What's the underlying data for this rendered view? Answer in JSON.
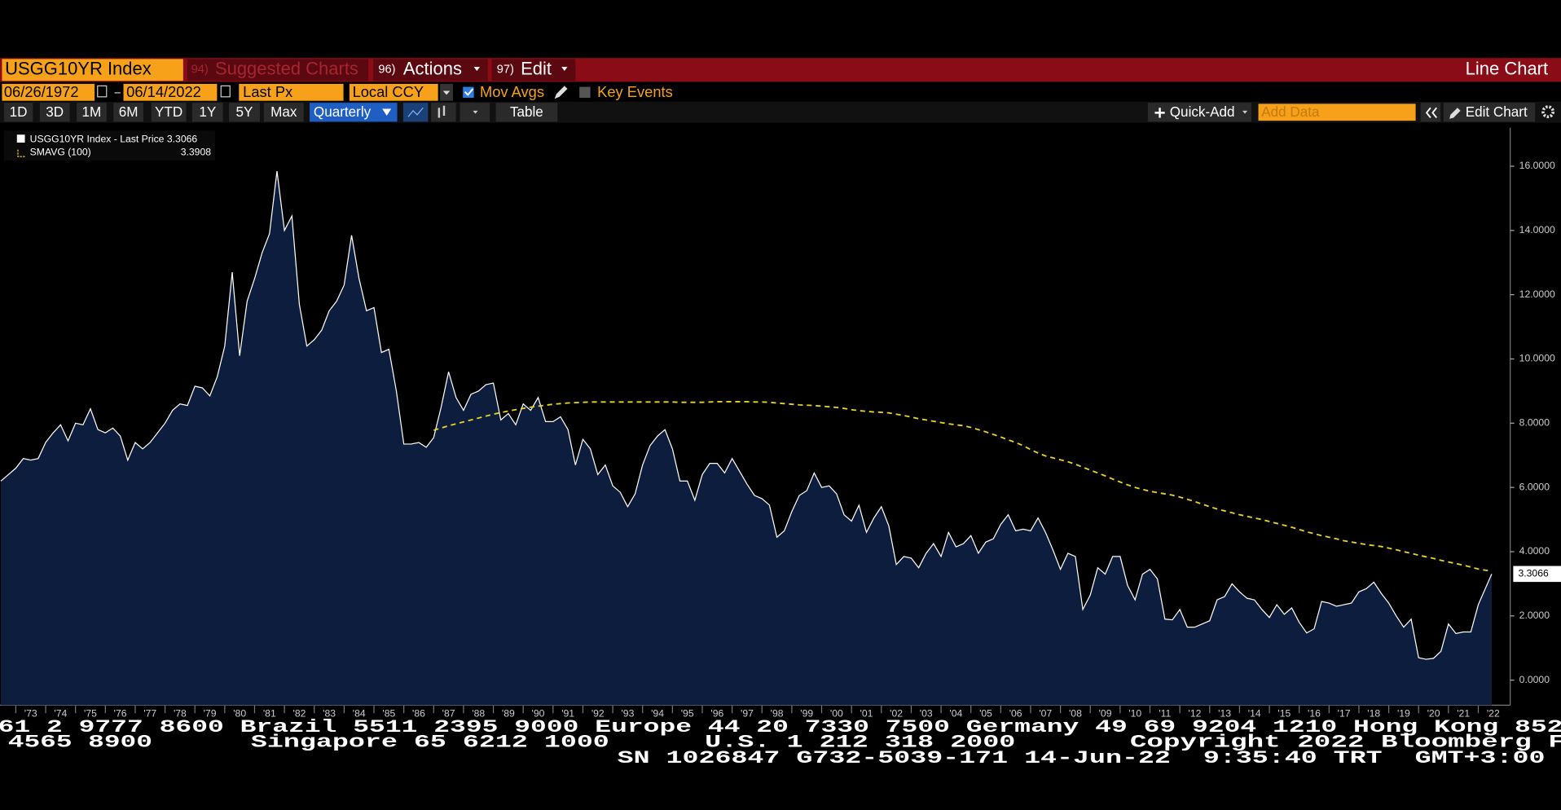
{
  "toolbar": {
    "ticker": "USGG10YR Index",
    "menu": [
      {
        "num": "94)",
        "label": "Suggested Charts"
      },
      {
        "num": "96)",
        "label": "Actions"
      },
      {
        "num": "97)",
        "label": "Edit"
      }
    ],
    "chart_kind": "Line Chart",
    "start_date": "06/26/1972",
    "end_date": "06/14/2022",
    "field": "Last Px",
    "currency": "Local CCY",
    "mov_avgs": "Mov Avgs",
    "key_events": "Key Events",
    "periods": [
      "1D",
      "3D",
      "1M",
      "6M",
      "YTD",
      "1Y",
      "5Y",
      "Max"
    ],
    "frequency": "Quarterly",
    "table": "Table",
    "quick_add": "Quick-Add",
    "add_data": "Add Data",
    "edit_chart": "Edit Chart"
  },
  "chart_data": {
    "type": "line",
    "x": [
      1972.5,
      1972.75,
      1973,
      1973.25,
      1973.5,
      1973.75,
      1974,
      1974.25,
      1974.5,
      1974.75,
      1975,
      1975.25,
      1975.5,
      1975.75,
      1976,
      1976.25,
      1976.5,
      1976.75,
      1977,
      1977.25,
      1977.5,
      1977.75,
      1978,
      1978.25,
      1978.5,
      1978.75,
      1979,
      1979.25,
      1979.5,
      1979.75,
      1980,
      1980.25,
      1980.5,
      1980.75,
      1981,
      1981.25,
      1981.5,
      1981.75,
      1982,
      1982.25,
      1982.5,
      1982.75,
      1983,
      1983.25,
      1983.5,
      1983.75,
      1984,
      1984.25,
      1984.5,
      1984.75,
      1985,
      1985.25,
      1985.5,
      1985.75,
      1986,
      1986.25,
      1986.5,
      1986.75,
      1987,
      1987.25,
      1987.5,
      1987.75,
      1988,
      1988.25,
      1988.5,
      1988.75,
      1989,
      1989.25,
      1989.5,
      1989.75,
      1990,
      1990.25,
      1990.5,
      1990.75,
      1991,
      1991.25,
      1991.5,
      1991.75,
      1992,
      1992.25,
      1992.5,
      1992.75,
      1993,
      1993.25,
      1993.5,
      1993.75,
      1994,
      1994.25,
      1994.5,
      1994.75,
      1995,
      1995.25,
      1995.5,
      1995.75,
      1996,
      1996.25,
      1996.5,
      1996.75,
      1997,
      1997.25,
      1997.5,
      1997.75,
      1998,
      1998.25,
      1998.5,
      1998.75,
      1999,
      1999.25,
      1999.5,
      1999.75,
      2000,
      2000.25,
      2000.5,
      2000.75,
      2001,
      2001.25,
      2001.5,
      2001.75,
      2002,
      2002.25,
      2002.5,
      2002.75,
      2003,
      2003.25,
      2003.5,
      2003.75,
      2004,
      2004.25,
      2004.5,
      2004.75,
      2005,
      2005.25,
      2005.5,
      2005.75,
      2006,
      2006.25,
      2006.5,
      2006.75,
      2007,
      2007.25,
      2007.5,
      2007.75,
      2008,
      2008.25,
      2008.5,
      2008.75,
      2009,
      2009.25,
      2009.5,
      2009.75,
      2010,
      2010.25,
      2010.5,
      2010.75,
      2011,
      2011.25,
      2011.5,
      2011.75,
      2012,
      2012.25,
      2012.5,
      2012.75,
      2013,
      2013.25,
      2013.5,
      2013.75,
      2014,
      2014.25,
      2014.5,
      2014.75,
      2015,
      2015.25,
      2015.5,
      2015.75,
      2016,
      2016.25,
      2016.5,
      2016.75,
      2017,
      2017.25,
      2017.5,
      2017.75,
      2018,
      2018.25,
      2018.5,
      2018.75,
      2019,
      2019.25,
      2019.5,
      2019.75,
      2020,
      2020.25,
      2020.5,
      2020.75,
      2021,
      2021.25,
      2021.5,
      2021.75,
      2022,
      2022.45
    ],
    "series": [
      {
        "name": "USGG10YR Index - Last Price 3.3066",
        "color": "#ffffff",
        "fill": "#0c1d3d",
        "values": [
          6.2,
          6.4,
          6.6,
          6.9,
          6.85,
          6.9,
          7.4,
          7.7,
          7.95,
          7.45,
          8.0,
          7.95,
          8.45,
          7.8,
          7.7,
          7.85,
          7.6,
          6.85,
          7.4,
          7.2,
          7.4,
          7.7,
          8.0,
          8.4,
          8.6,
          8.55,
          9.15,
          9.1,
          8.85,
          9.45,
          10.4,
          12.7,
          10.1,
          11.8,
          12.5,
          13.3,
          13.9,
          15.85,
          14.0,
          14.45,
          11.7,
          10.4,
          10.6,
          10.9,
          11.5,
          11.8,
          12.3,
          13.85,
          12.5,
          11.5,
          11.6,
          10.2,
          10.3,
          9.0,
          7.35,
          7.35,
          7.4,
          7.25,
          7.55,
          8.5,
          9.6,
          8.8,
          8.4,
          8.9,
          9.0,
          9.2,
          9.25,
          8.1,
          8.3,
          7.95,
          8.6,
          8.4,
          8.8,
          8.05,
          8.05,
          8.2,
          7.8,
          6.7,
          7.5,
          7.2,
          6.4,
          6.7,
          6.05,
          5.85,
          5.4,
          5.8,
          6.7,
          7.3,
          7.6,
          7.8,
          7.2,
          6.2,
          6.2,
          5.6,
          6.4,
          6.75,
          6.75,
          6.45,
          6.9,
          6.5,
          6.1,
          5.75,
          5.65,
          5.45,
          4.45,
          4.65,
          5.25,
          5.75,
          5.9,
          6.45,
          6.0,
          6.05,
          5.8,
          5.15,
          4.95,
          5.45,
          4.6,
          5.05,
          5.4,
          4.8,
          3.6,
          3.85,
          3.8,
          3.5,
          3.95,
          4.25,
          3.85,
          4.6,
          4.15,
          4.25,
          4.5,
          3.95,
          4.3,
          4.4,
          4.85,
          5.15,
          4.65,
          4.7,
          4.65,
          5.05,
          4.6,
          4.05,
          3.45,
          3.95,
          3.85,
          2.2,
          2.65,
          3.5,
          3.3,
          3.85,
          3.85,
          2.95,
          2.5,
          3.3,
          3.45,
          3.15,
          1.9,
          1.88,
          2.2,
          1.65,
          1.65,
          1.75,
          1.85,
          2.5,
          2.6,
          3.0,
          2.75,
          2.55,
          2.5,
          2.2,
          1.95,
          2.35,
          2.05,
          2.25,
          1.8,
          1.47,
          1.6,
          2.45,
          2.4,
          2.3,
          2.35,
          2.4,
          2.75,
          2.85,
          3.05,
          2.7,
          2.4,
          2.0,
          1.65,
          1.9,
          0.7,
          0.65,
          0.68,
          0.9,
          1.75,
          1.45,
          1.5,
          1.5,
          2.35,
          3.3066
        ]
      },
      {
        "name": "SMAVG (100)",
        "legend_value": "3.3908",
        "color": "#e8d41e",
        "dashed": true,
        "values": [
          null,
          null,
          null,
          null,
          null,
          null,
          null,
          null,
          null,
          null,
          null,
          null,
          null,
          null,
          null,
          null,
          null,
          null,
          null,
          null,
          null,
          null,
          null,
          null,
          null,
          null,
          null,
          null,
          null,
          null,
          null,
          null,
          null,
          null,
          null,
          null,
          null,
          null,
          null,
          null,
          null,
          null,
          null,
          null,
          null,
          null,
          null,
          null,
          null,
          null,
          null,
          null,
          null,
          null,
          null,
          null,
          null,
          null,
          7.78,
          7.85,
          7.92,
          7.98,
          8.04,
          8.1,
          8.16,
          8.22,
          8.28,
          8.33,
          8.38,
          8.42,
          8.46,
          8.5,
          8.53,
          8.56,
          8.59,
          8.61,
          8.63,
          8.64,
          8.65,
          8.66,
          8.66,
          8.66,
          8.66,
          8.66,
          8.66,
          8.66,
          8.66,
          8.66,
          8.66,
          8.66,
          8.66,
          8.65,
          8.65,
          8.65,
          8.65,
          8.66,
          8.67,
          8.67,
          8.67,
          8.67,
          8.67,
          8.66,
          8.66,
          8.65,
          8.63,
          8.61,
          8.59,
          8.57,
          8.56,
          8.55,
          8.53,
          8.51,
          8.49,
          8.46,
          8.42,
          8.39,
          8.37,
          8.35,
          8.34,
          8.32,
          8.28,
          8.24,
          8.19,
          8.14,
          8.1,
          8.06,
          8.02,
          7.98,
          7.95,
          7.92,
          7.87,
          7.8,
          7.73,
          7.65,
          7.57,
          7.48,
          7.4,
          7.3,
          7.18,
          7.07,
          6.98,
          6.92,
          6.86,
          6.8,
          6.72,
          6.63,
          6.54,
          6.45,
          6.36,
          6.26,
          6.17,
          6.08,
          6.0,
          5.94,
          5.88,
          5.84,
          5.8,
          5.76,
          5.7,
          5.63,
          5.56,
          5.48,
          5.4,
          5.33,
          5.27,
          5.21,
          5.15,
          5.1,
          5.05,
          5.0,
          4.94,
          4.88,
          4.82,
          4.76,
          4.69,
          4.62,
          4.56,
          4.5,
          4.45,
          4.4,
          4.34,
          4.3,
          4.26,
          4.22,
          4.19,
          4.16,
          4.11,
          4.06,
          4.0,
          3.95,
          3.89,
          3.84,
          3.79,
          3.73,
          3.68,
          3.63,
          3.58,
          3.52,
          3.46,
          3.3908
        ]
      }
    ],
    "xlim": [
      1972.47,
      2023.07
    ],
    "xticks": [
      {
        "value": 1973,
        "label": "'73"
      },
      {
        "value": 1974,
        "label": "'74"
      },
      {
        "value": 1975,
        "label": "'75"
      },
      {
        "value": 1976,
        "label": "'76"
      },
      {
        "value": 1977,
        "label": "'77"
      },
      {
        "value": 1978,
        "label": "'78"
      },
      {
        "value": 1979,
        "label": "'79"
      },
      {
        "value": 1980,
        "label": "'80"
      },
      {
        "value": 1981,
        "label": "'81"
      },
      {
        "value": 1982,
        "label": "'82"
      },
      {
        "value": 1983,
        "label": "'83"
      },
      {
        "value": 1984,
        "label": "'84"
      },
      {
        "value": 1985,
        "label": "'85"
      },
      {
        "value": 1986,
        "label": "'86"
      },
      {
        "value": 1987,
        "label": "'87"
      },
      {
        "value": 1988,
        "label": "'88"
      },
      {
        "value": 1989,
        "label": "'89"
      },
      {
        "value": 1990,
        "label": "'90"
      },
      {
        "value": 1991,
        "label": "'91"
      },
      {
        "value": 1992,
        "label": "'92"
      },
      {
        "value": 1993,
        "label": "'93"
      },
      {
        "value": 1994,
        "label": "'94"
      },
      {
        "value": 1995,
        "label": "'95"
      },
      {
        "value": 1996,
        "label": "'96"
      },
      {
        "value": 1997,
        "label": "'97"
      },
      {
        "value": 1998,
        "label": "'98"
      },
      {
        "value": 1999,
        "label": "'99"
      },
      {
        "value": 2000,
        "label": "'00"
      },
      {
        "value": 2001,
        "label": "'01"
      },
      {
        "value": 2002,
        "label": "'02"
      },
      {
        "value": 2003,
        "label": "'03"
      },
      {
        "value": 2004,
        "label": "'04"
      },
      {
        "value": 2005,
        "label": "'05"
      },
      {
        "value": 2006,
        "label": "'06"
      },
      {
        "value": 2007,
        "label": "'07"
      },
      {
        "value": 2008,
        "label": "'08"
      },
      {
        "value": 2009,
        "label": "'09"
      },
      {
        "value": 2010,
        "label": "'10"
      },
      {
        "value": 2011,
        "label": "'11"
      },
      {
        "value": 2012,
        "label": "'12"
      },
      {
        "value": 2013,
        "label": "'13"
      },
      {
        "value": 2014,
        "label": "'14"
      },
      {
        "value": 2015,
        "label": "'15"
      },
      {
        "value": 2016,
        "label": "'16"
      },
      {
        "value": 2017,
        "label": "'17"
      },
      {
        "value": 2018,
        "label": "'18"
      },
      {
        "value": 2019,
        "label": "'19"
      },
      {
        "value": 2020,
        "label": "'20"
      },
      {
        "value": 2021,
        "label": "'21"
      },
      {
        "value": 2022,
        "label": "'22"
      }
    ],
    "ylim": [
      -0.78,
      17.2
    ],
    "yticks": [
      {
        "value": 0,
        "label": "0.0000"
      },
      {
        "value": 2,
        "label": "2.0000"
      },
      {
        "value": 4,
        "label": "4.0000"
      },
      {
        "value": 6,
        "label": "6.0000"
      },
      {
        "value": 8,
        "label": "8.0000"
      },
      {
        "value": 10,
        "label": "10.0000"
      },
      {
        "value": 12,
        "label": "12.0000"
      },
      {
        "value": 14,
        "label": "14.0000"
      },
      {
        "value": 16,
        "label": "16.0000"
      }
    ],
    "y_axis_side": "right"
  },
  "ticker_tape": {
    "line1": "61 2 9777 8600 Brazil 5511 2395 9000 Europe 44 20 7330 7500 Germany 49 69 9204 1210 Hong Kong 852",
    "line2": [
      "4565 8900",
      "Singapore 65 6212 1000",
      "U.S. 1 212 318 2000",
      "Copyright 2022 Bloomberg F"
    ],
    "line3": "SN 1026847 G732-5039-171 14-Jun-22  9:35:40 TRT  GMT+3:00"
  }
}
